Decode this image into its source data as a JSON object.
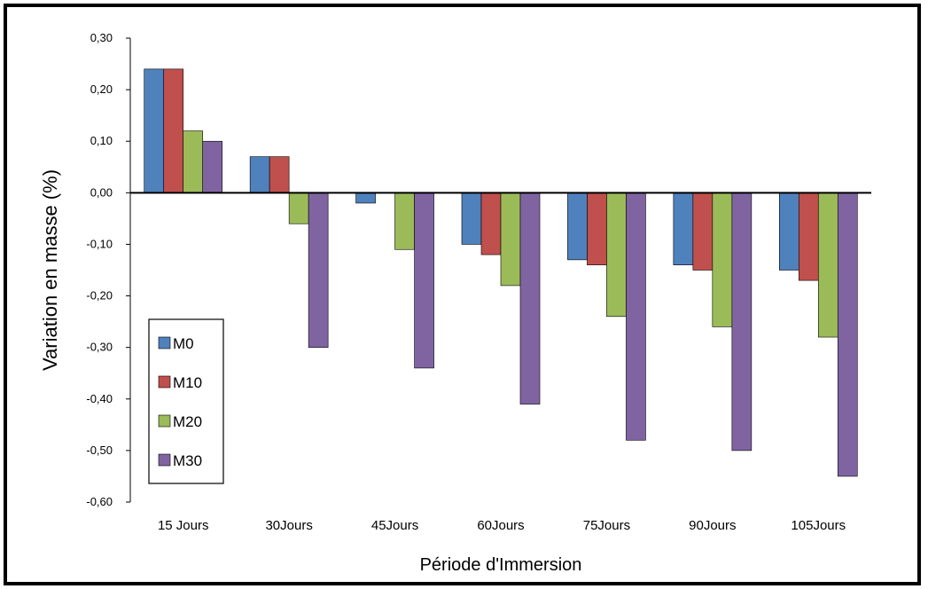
{
  "chart_data": {
    "type": "bar",
    "categories": [
      "15 Jours",
      "30Jours",
      "45Jours",
      "60Jours",
      "75Jours",
      "90Jours",
      "105Jours"
    ],
    "series": [
      {
        "name": "M0",
        "color": "#4F81BD",
        "values": [
          0.24,
          0.07,
          -0.02,
          -0.1,
          -0.13,
          -0.14,
          -0.15
        ]
      },
      {
        "name": "M10",
        "color": "#C0504D",
        "values": [
          0.24,
          0.07,
          0.0,
          -0.12,
          -0.14,
          -0.15,
          -0.17
        ]
      },
      {
        "name": "M20",
        "color": "#9BBB59",
        "values": [
          0.12,
          -0.06,
          -0.11,
          -0.18,
          -0.24,
          -0.26,
          -0.28
        ]
      },
      {
        "name": "M30",
        "color": "#8064A2",
        "values": [
          0.1,
          -0.3,
          -0.34,
          -0.41,
          -0.48,
          -0.5,
          -0.55
        ]
      }
    ],
    "ylim": [
      -0.6,
      0.3
    ],
    "yticks": [
      "0,30",
      "0,20",
      "0,10",
      "0,00",
      "-0,10",
      "-0,20",
      "-0,30",
      "-0,40",
      "-0,50",
      "-0,60"
    ],
    "ylabel": "Variation en masse  (%)",
    "xlabel": "Période d'Immersion",
    "legend_position": "bottom-left",
    "grid": false
  }
}
